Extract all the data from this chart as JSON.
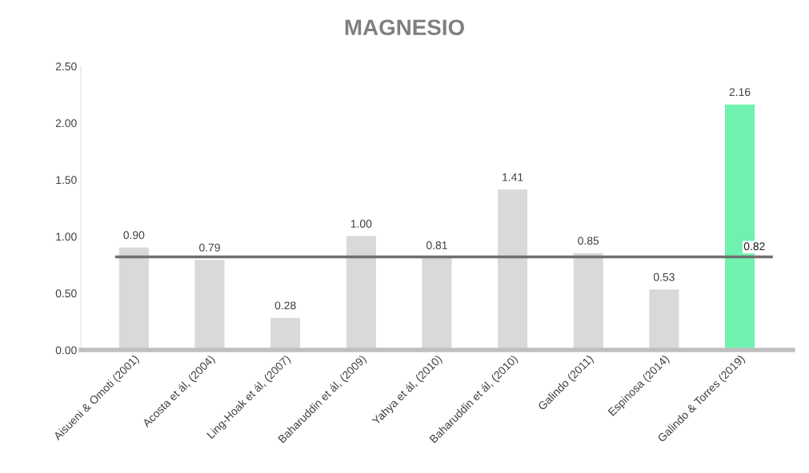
{
  "chart_data": {
    "type": "bar",
    "title": "MAGNESIO",
    "categories": [
      "Aisueni & Omoti (2001)",
      "Acosta et ál, (2004)",
      "Ling-Hoak et ál, (2007)",
      "Baharuddin et ál, (2009)",
      "Yahya et ál, (2010)",
      "Baharuddin et ál, (2010)",
      "Galindo (2011)",
      "Espinosa (2014)",
      "Galindo & Torres (2019)"
    ],
    "values": [
      0.9,
      0.79,
      0.28,
      1.0,
      0.81,
      1.41,
      0.85,
      0.53,
      2.16
    ],
    "colors": [
      "#d9d9d9",
      "#d9d9d9",
      "#d9d9d9",
      "#d9d9d9",
      "#d9d9d9",
      "#d9d9d9",
      "#d9d9d9",
      "#d9d9d9",
      "#6ff2b0"
    ],
    "value_labels": [
      "0.90",
      "0.79",
      "0.28",
      "1.00",
      "0.81",
      "1.41",
      "0.85",
      "0.53",
      "2.16"
    ],
    "ref_lines": [
      {
        "axis": "y",
        "value": 0.82,
        "label": "0.82",
        "color": "#707070"
      }
    ],
    "ylim": [
      0,
      2.5
    ],
    "yticks": [
      {
        "value": 0,
        "label": "0.00"
      },
      {
        "value": 0.5,
        "label": "0.50"
      },
      {
        "value": 1,
        "label": "1.00"
      },
      {
        "value": 1.5,
        "label": "1.50"
      },
      {
        "value": 2,
        "label": "2.00"
      },
      {
        "value": 2.5,
        "label": "2.50"
      }
    ],
    "grid": false,
    "legend": false
  }
}
